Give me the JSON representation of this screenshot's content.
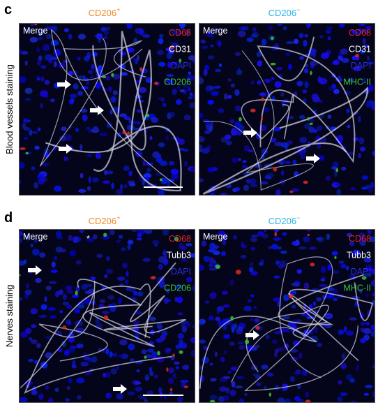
{
  "panels": [
    {
      "letter": "c",
      "row_label": "Blood vessels staining",
      "columns": [
        {
          "header": "CD206",
          "header_sup": "+",
          "merge": "Merge",
          "markers": [
            "CD68",
            "CD31",
            "DAPI",
            "CD206"
          ]
        },
        {
          "header": "CD206",
          "header_sup": "−",
          "merge": "Merge",
          "markers": [
            "CD68",
            "CD31",
            "DAPI",
            "MHC-II"
          ]
        }
      ]
    },
    {
      "letter": "d",
      "row_label": "Nerves staining",
      "columns": [
        {
          "header": "CD206",
          "header_sup": "+",
          "merge": "Merge",
          "markers": [
            "CD68",
            "Tubb3",
            "DAPI",
            "CD206"
          ],
          "annotation": "*"
        },
        {
          "header": "CD206",
          "header_sup": "−",
          "merge": "Merge",
          "markers": [
            "CD68",
            "Tubb3",
            "DAPI",
            "MHC-II"
          ]
        }
      ]
    }
  ]
}
